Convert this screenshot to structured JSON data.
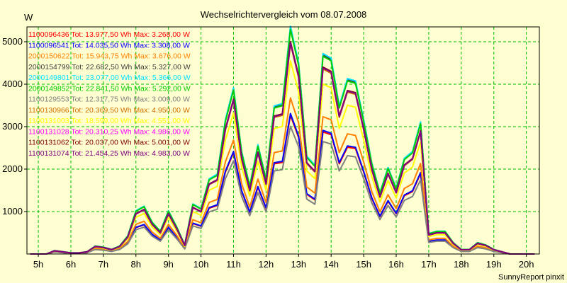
{
  "chart_data": {
    "type": "line",
    "title": "Wechselrichtervergleich vom 08.07.2008",
    "ylabel": "W",
    "credit": "SunnyReport pinxit",
    "ylim": [
      0,
      5350
    ],
    "xlim": [
      4.65,
      20.4
    ],
    "yticks": [
      1000,
      2000,
      3000,
      4000,
      5000
    ],
    "xticks": [
      5,
      6,
      7,
      8,
      9,
      10,
      11,
      12,
      13,
      14,
      15,
      16,
      17,
      18,
      19,
      20
    ],
    "xtick_labels": [
      "5h",
      "6h",
      "7h",
      "8h",
      "9h",
      "10h",
      "11h",
      "12h",
      "13h",
      "14h",
      "15h",
      "16h",
      "17h",
      "18h",
      "19h",
      "20h"
    ],
    "grid": true,
    "legend_position": "top-left",
    "x": [
      4.75,
      5.0,
      5.25,
      5.5,
      5.75,
      6.0,
      6.25,
      6.5,
      6.75,
      7.0,
      7.25,
      7.5,
      7.75,
      8.0,
      8.25,
      8.5,
      8.75,
      9.0,
      9.25,
      9.5,
      9.75,
      10.0,
      10.25,
      10.5,
      10.75,
      11.0,
      11.25,
      11.5,
      11.75,
      12.0,
      12.25,
      12.5,
      12.75,
      13.0,
      13.25,
      13.5,
      13.75,
      14.0,
      14.25,
      14.5,
      14.75,
      15.0,
      15.25,
      15.5,
      15.75,
      16.0,
      16.25,
      16.5,
      16.75,
      17.0,
      17.25,
      17.5,
      17.75,
      18.0,
      18.25,
      18.5,
      18.75,
      19.0,
      19.25,
      19.5,
      19.75,
      20.0,
      20.25
    ],
    "shape_x": [
      4.75,
      5.0,
      5.25,
      5.5,
      5.75,
      6.0,
      6.25,
      6.5,
      6.75,
      7.0,
      7.25,
      7.5,
      7.75,
      8.0,
      8.25,
      8.5,
      8.75,
      9.0,
      9.25,
      9.5,
      9.75,
      10.0,
      10.25,
      10.5,
      10.75,
      11.0,
      11.25,
      11.5,
      11.75,
      12.0,
      12.25,
      12.5,
      12.75,
      13.0,
      13.25,
      13.5,
      13.75,
      14.0,
      14.25,
      14.5,
      14.75,
      15.0,
      15.25,
      15.5,
      15.75,
      16.0,
      16.25,
      16.5,
      16.75,
      17.0,
      17.25,
      17.5,
      17.75,
      18.0,
      18.25,
      18.5,
      18.75,
      19.0,
      19.25,
      19.5,
      19.75,
      20.0,
      20.25
    ],
    "series": [
      {
        "name": "1100096436",
        "legend": "1100096436 Tot: 13.977,50 Wh Max: 3.268,00 W",
        "color": "#ff0000",
        "peak": 3268
      },
      {
        "name": "1100096541",
        "legend": "1100096541 Tot: 14.035,50 Wh Max: 3.308,00 W",
        "color": "#0000ff",
        "peak": 3308
      },
      {
        "name": "2000150622",
        "legend": "2000150622 Tot: 15.943,75 Wh Max: 3.676,00 W",
        "color": "#ff8000",
        "peak": 3676
      },
      {
        "name": "2000154799",
        "legend": "2000154799 Tot: 22.682,50 Wh Max: 5.327,00 W",
        "color": "#404040",
        "peak": 5327
      },
      {
        "name": "2000149801",
        "legend": "2000149801 Tot: 23.077,00 Wh Max: 5.366,00 W",
        "color": "#00e0ff",
        "peak": 5366
      },
      {
        "name": "2000149852",
        "legend": "2000149852 Tot: 22.841,50 Wh Max: 5.292,00 W",
        "color": "#00cc00",
        "peak": 5292
      },
      {
        "name": "1100129553",
        "legend": "1100129553 Tot: 12.317,75 Wh Max: 3.009,00 W",
        "color": "#808080",
        "peak": 3009
      },
      {
        "name": "1100130966",
        "legend": "1100130966 Tot: 20.369,50 Wh Max: 4.950,00 W",
        "color": "#d07000",
        "peak": 4950
      },
      {
        "name": "1100131003",
        "legend": "1100131003 Tot: 18.599,00 Wh Max: 4.551,00 W",
        "color": "#ffff00",
        "peak": 4551
      },
      {
        "name": "1100131028",
        "legend": "1100131028 Tot: 20.310,25 Wh Max: 4.986,00 W",
        "color": "#ff00ff",
        "peak": 4986
      },
      {
        "name": "1100131062",
        "legend": "1100131062 Tot: 20.037,00 Wh Max: 5.001,00 W",
        "color": "#800000",
        "peak": 5001
      },
      {
        "name": "1100131074",
        "legend": "1100131074 Tot: 21.454,25 Wh Max: 4.983,00 W",
        "color": "#800080",
        "peak": 4983
      }
    ],
    "shape": [
      0.0,
      0.0,
      0.0,
      0.015,
      0.01,
      0.005,
      0.005,
      0.01,
      0.035,
      0.03,
      0.02,
      0.035,
      0.08,
      0.19,
      0.21,
      0.14,
      0.1,
      0.19,
      0.12,
      0.04,
      0.22,
      0.2,
      0.33,
      0.35,
      0.59,
      0.73,
      0.45,
      0.3,
      0.48,
      0.33,
      0.65,
      0.66,
      1.0,
      0.84,
      0.43,
      0.39,
      0.88,
      0.86,
      0.65,
      0.77,
      0.76,
      0.59,
      0.4,
      0.27,
      0.38,
      0.29,
      0.42,
      0.45,
      0.58,
      0.09,
      0.1,
      0.1,
      0.05,
      0.02,
      0.02,
      0.05,
      0.04,
      0.02,
      0.01,
      0.0,
      0.0,
      0.0,
      0.0
    ]
  }
}
